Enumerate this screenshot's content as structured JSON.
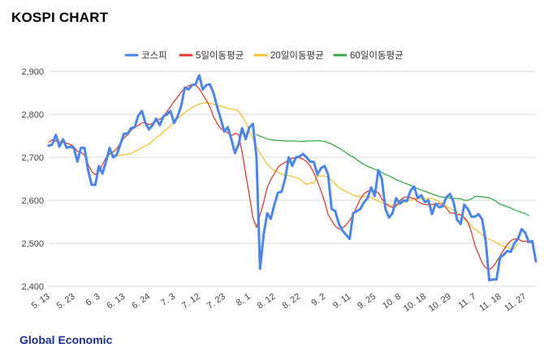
{
  "title": "KOSPI CHART",
  "footer": "Global Economic",
  "chart_data": {
    "type": "line",
    "legend_position": "top",
    "grid": true,
    "colors": {
      "kospi": "#4a86e8",
      "ma5": "#e33a2f",
      "ma20": "#f1c232",
      "ma60": "#3aa84a"
    },
    "ylim": [
      2400,
      2900
    ],
    "yticks": [
      "2,900",
      "2,800",
      "2,700",
      "2,600",
      "2,500",
      "2,400"
    ],
    "ytick_values": [
      2900,
      2800,
      2700,
      2600,
      2500,
      2400
    ],
    "xtick_labels": [
      "5. 13",
      "5. 23",
      "6. 3",
      "6. 13",
      "6. 24",
      "7. 3",
      "7. 12",
      "7. 23",
      "8. 1",
      "8. 12",
      "8. 22",
      "9. 2",
      "9. 11",
      "9. 25",
      "10. 8",
      "10. 18",
      "10. 29",
      "11. 7",
      "11. 18",
      "11. 27"
    ],
    "xtick_index": [
      0,
      7,
      14,
      21,
      28,
      35,
      42,
      49,
      56,
      63,
      70,
      77,
      84,
      91,
      98,
      105,
      112,
      119,
      126,
      133
    ],
    "n_points": 137,
    "series": [
      {
        "name": "코스피",
        "color": "#4a86e8",
        "values": [
          2727,
          2730,
          2752,
          2725,
          2742,
          2722,
          2725,
          2722,
          2690,
          2722,
          2722,
          2670,
          2636,
          2636,
          2680,
          2662,
          2690,
          2722,
          2700,
          2706,
          2730,
          2755,
          2755,
          2768,
          2770,
          2797,
          2808,
          2780,
          2765,
          2775,
          2790,
          2775,
          2795,
          2800,
          2808,
          2780,
          2795,
          2820,
          2862,
          2858,
          2868,
          2870,
          2891,
          2858,
          2868,
          2870,
          2850,
          2818,
          2790,
          2760,
          2770,
          2742,
          2710,
          2730,
          2768,
          2742,
          2770,
          2778,
          2700,
          2441,
          2520,
          2570,
          2557,
          2590,
          2618,
          2620,
          2650,
          2700,
          2680,
          2700,
          2702,
          2708,
          2700,
          2690,
          2689,
          2660,
          2675,
          2680,
          2660,
          2580,
          2575,
          2545,
          2530,
          2520,
          2510,
          2570,
          2575,
          2580,
          2595,
          2605,
          2630,
          2610,
          2670,
          2650,
          2580,
          2560,
          2570,
          2605,
          2592,
          2600,
          2598,
          2622,
          2632,
          2605,
          2612,
          2596,
          2600,
          2568,
          2592,
          2584,
          2586,
          2607,
          2615,
          2597,
          2555,
          2545,
          2590,
          2580,
          2562,
          2562,
          2568,
          2556,
          2505,
          2414,
          2416,
          2416,
          2467,
          2473,
          2482,
          2480,
          2500,
          2510,
          2533,
          2525,
          2503,
          2505,
          2458
        ]
      },
      {
        "name": "5일이동평균",
        "color": "#e33a2f",
        "values": [
          2735,
          2741,
          2738,
          2736,
          2735,
          2733,
          2730,
          2725,
          2714,
          2712,
          2705,
          2684,
          2667,
          2660,
          2667,
          2683,
          2699,
          2707,
          2712,
          2720,
          2733,
          2745,
          2752,
          2763,
          2771,
          2774,
          2780,
          2781,
          2776,
          2779,
          2784,
          2789,
          2794,
          2806,
          2818,
          2830,
          2840,
          2852,
          2861,
          2866,
          2870,
          2868,
          2860,
          2846,
          2833,
          2818,
          2795,
          2779,
          2767,
          2762,
          2757,
          2750,
          2756,
          2753,
          2712,
          2662,
          2612,
          2560,
          2537,
          2566,
          2595,
          2630,
          2648,
          2662,
          2677,
          2684,
          2688,
          2695,
          2698,
          2699,
          2699,
          2696,
          2690,
          2680,
          2664,
          2645,
          2622,
          2598,
          2567,
          2553,
          2540,
          2533,
          2536,
          2542,
          2553,
          2567,
          2585,
          2603,
          2615,
          2621,
          2624,
          2621,
          2618,
          2603,
          2593,
          2586,
          2584,
          2586,
          2599,
          2606,
          2608,
          2606,
          2605,
          2597,
          2593,
          2590,
          2590,
          2590,
          2592,
          2592,
          2590,
          2582,
          2571,
          2570,
          2567,
          2566,
          2560,
          2550,
          2526,
          2495,
          2475,
          2455,
          2443,
          2439,
          2445,
          2457,
          2471,
          2484,
          2497,
          2506,
          2510,
          2511,
          2505,
          2505,
          2502
        ]
      },
      {
        "name": "20일이동평균",
        "color": "#f1c232",
        "values": [
          null,
          null,
          null,
          null,
          null,
          null,
          null,
          null,
          null,
          null,
          null,
          null,
          null,
          null,
          null,
          null,
          null,
          null,
          null,
          2704,
          2705,
          2706,
          2707,
          2709,
          2714,
          2717,
          2723,
          2726,
          2731,
          2738,
          2746,
          2751,
          2760,
          2766,
          2774,
          2782,
          2790,
          2797,
          2804,
          2810,
          2816,
          2820,
          2824,
          2826,
          2827,
          2826,
          2824,
          2820,
          2819,
          2817,
          2814,
          2812,
          2811,
          2808,
          2797,
          2780,
          2761,
          2744,
          2725,
          2710,
          2697,
          2684,
          2676,
          2669,
          2665,
          2661,
          2659,
          2657,
          2656,
          2653,
          2650,
          2643,
          2637,
          2641,
          2640,
          2656,
          2657,
          2656,
          2653,
          2647,
          2638,
          2630,
          2625,
          2620,
          2617,
          2612,
          2610,
          2609,
          2609,
          2608,
          2607,
          2602,
          2598,
          2594,
          2593,
          2590,
          2588,
          2590,
          2592,
          2594,
          2598,
          2601,
          2603,
          2604,
          2604,
          2604,
          2604,
          2605,
          2601,
          2597,
          2594,
          2587,
          2582,
          2577,
          2573,
          2566,
          2557,
          2548,
          2541,
          2533,
          2527,
          2520,
          2514,
          2509,
          2506,
          2502,
          2496,
          2493,
          2490,
          2488,
          2487,
          2500
        ]
      },
      {
        "name": "60일이동평균",
        "color": "#3aa84a",
        "values": [
          null,
          null,
          null,
          null,
          null,
          null,
          null,
          null,
          null,
          null,
          null,
          null,
          null,
          null,
          null,
          null,
          null,
          null,
          null,
          null,
          null,
          null,
          null,
          null,
          null,
          null,
          null,
          null,
          null,
          null,
          null,
          null,
          null,
          null,
          null,
          null,
          null,
          null,
          null,
          null,
          null,
          null,
          null,
          null,
          null,
          null,
          null,
          null,
          null,
          null,
          null,
          null,
          null,
          null,
          null,
          null,
          null,
          null,
          2753,
          2749,
          2746,
          2743,
          2741,
          2740,
          2739,
          2739,
          2738,
          2738,
          2738,
          2738,
          2737,
          2737,
          2738,
          2738,
          2738,
          2739,
          2738,
          2737,
          2734,
          2731,
          2726,
          2722,
          2716,
          2711,
          2705,
          2701,
          2695,
          2689,
          2684,
          2679,
          2676,
          2672,
          2670,
          2665,
          2660,
          2657,
          2653,
          2648,
          2645,
          2641,
          2638,
          2635,
          2631,
          2627,
          2624,
          2621,
          2618,
          2615,
          2612,
          2609,
          2607,
          2607,
          2605,
          2605,
          2604,
          2604,
          2600,
          2600,
          2603,
          2609,
          2609,
          2608,
          2607,
          2606,
          2602,
          2597,
          2591,
          2588,
          2585,
          2582,
          2578,
          2575,
          2572,
          2569,
          2565
        ]
      }
    ]
  }
}
